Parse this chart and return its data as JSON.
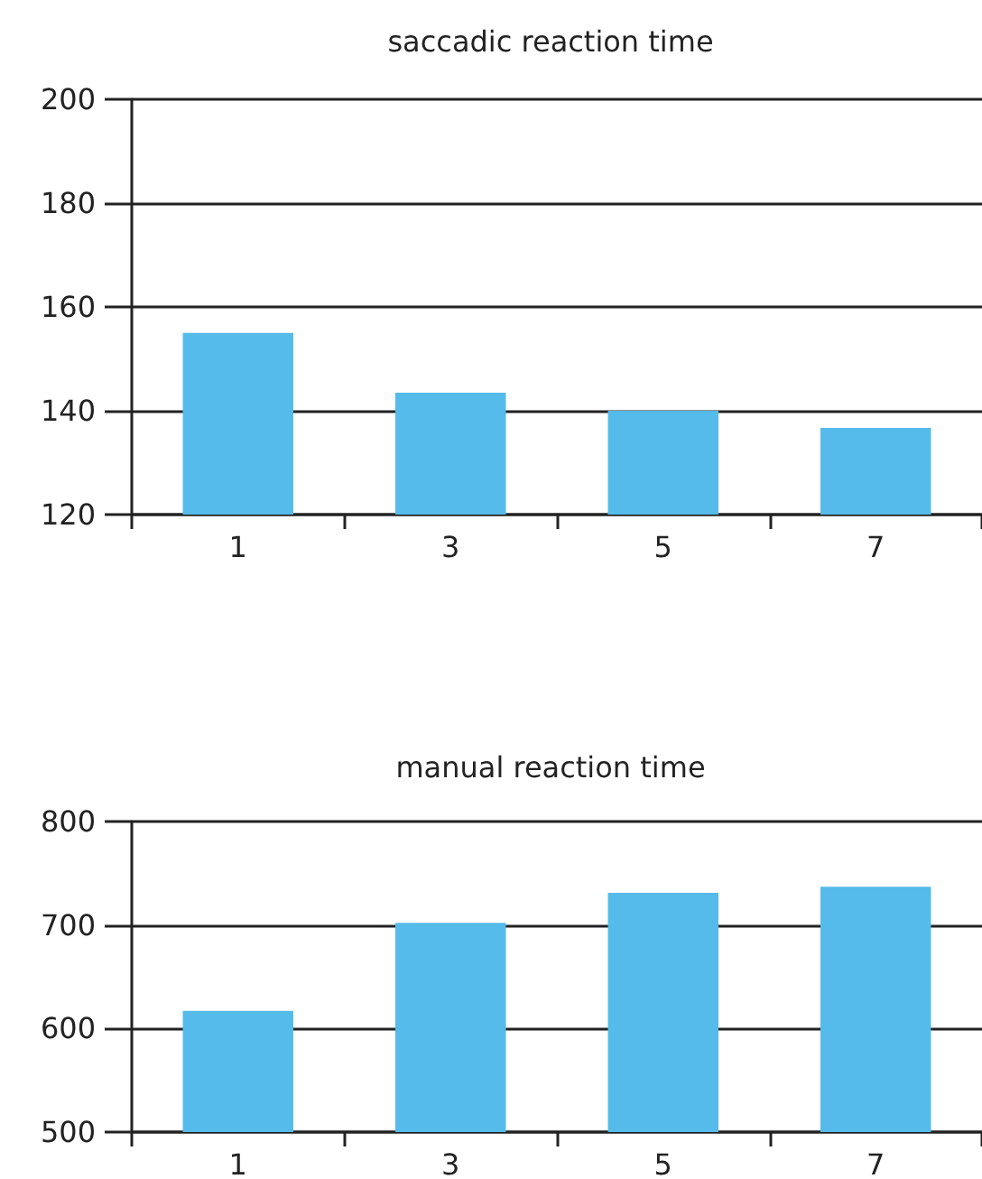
{
  "chart_data": [
    {
      "type": "bar",
      "title": "saccadic reaction time",
      "categories": [
        "1",
        "3",
        "5",
        "7"
      ],
      "values": [
        155,
        143.5,
        140,
        136.7
      ],
      "color": "#55bbea",
      "ylim": [
        120,
        200
      ],
      "yticks": [
        120,
        140,
        160,
        180,
        200
      ],
      "grid": "y"
    },
    {
      "type": "bar",
      "title": "manual reaction time",
      "categories": [
        "1",
        "3",
        "5",
        "7"
      ],
      "values": [
        617,
        702,
        731,
        737
      ],
      "color": "#55bbea",
      "ylim": [
        500,
        800
      ],
      "yticks": [
        500,
        600,
        700,
        800
      ],
      "grid": "y"
    }
  ]
}
